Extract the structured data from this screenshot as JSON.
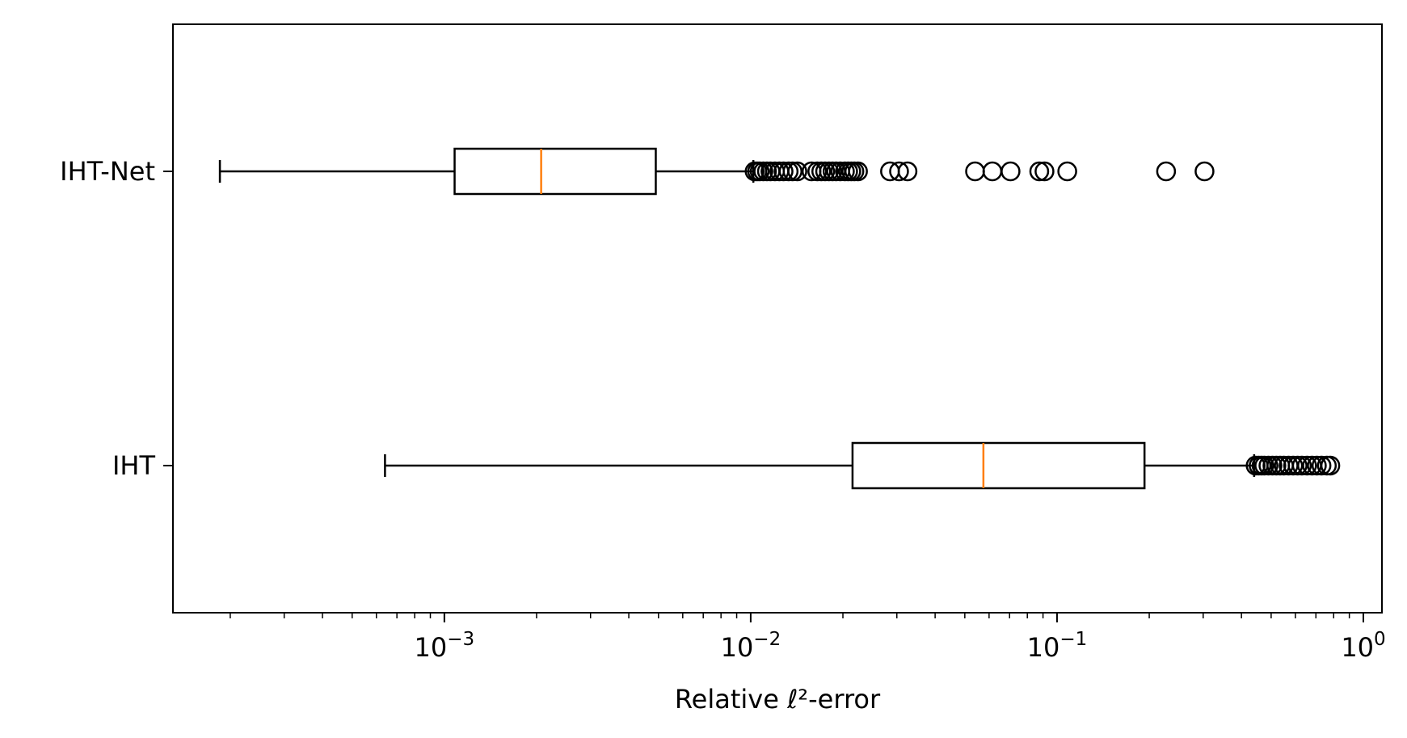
{
  "chart_data": {
    "type": "boxplot",
    "orientation": "horizontal",
    "xscale": "log",
    "xlim": [
      0.00013,
      1.15
    ],
    "xlabel": "Relative ℓ²-error",
    "xticks": [
      {
        "value": 0.001,
        "base": "10",
        "exp": "−3"
      },
      {
        "value": 0.01,
        "base": "10",
        "exp": "−2"
      },
      {
        "value": 0.1,
        "base": "10",
        "exp": "−1"
      },
      {
        "value": 1,
        "base": "10",
        "exp": "0"
      }
    ],
    "grid": false,
    "colors": {
      "box": "#000000",
      "median": "#ff7f0e",
      "flier": "#000000"
    },
    "series": [
      {
        "name": "IHT-Net",
        "whisker_low": 0.000185,
        "q1": 0.00108,
        "median": 0.00207,
        "q3": 0.0049,
        "whisker_high": 0.0102,
        "fliers": [
          0.0103,
          0.0105,
          0.0107,
          0.011,
          0.0113,
          0.0116,
          0.012,
          0.0124,
          0.0128,
          0.0133,
          0.0137,
          0.0142,
          0.0158,
          0.0165,
          0.017,
          0.0175,
          0.018,
          0.0185,
          0.019,
          0.0196,
          0.0203,
          0.0208,
          0.0213,
          0.0218,
          0.0224,
          0.0285,
          0.0305,
          0.0325,
          0.054,
          0.0615,
          0.0705,
          0.0875,
          0.091,
          0.108,
          0.227,
          0.303
        ]
      },
      {
        "name": "IHT",
        "whisker_low": 0.00064,
        "q1": 0.0215,
        "median": 0.0575,
        "q3": 0.193,
        "whisker_high": 0.44,
        "fliers": [
          0.445,
          0.455,
          0.465,
          0.475,
          0.49,
          0.505,
          0.52,
          0.535,
          0.55,
          0.57,
          0.59,
          0.61,
          0.63,
          0.655,
          0.68,
          0.705,
          0.73,
          0.76,
          0.78
        ]
      }
    ]
  }
}
